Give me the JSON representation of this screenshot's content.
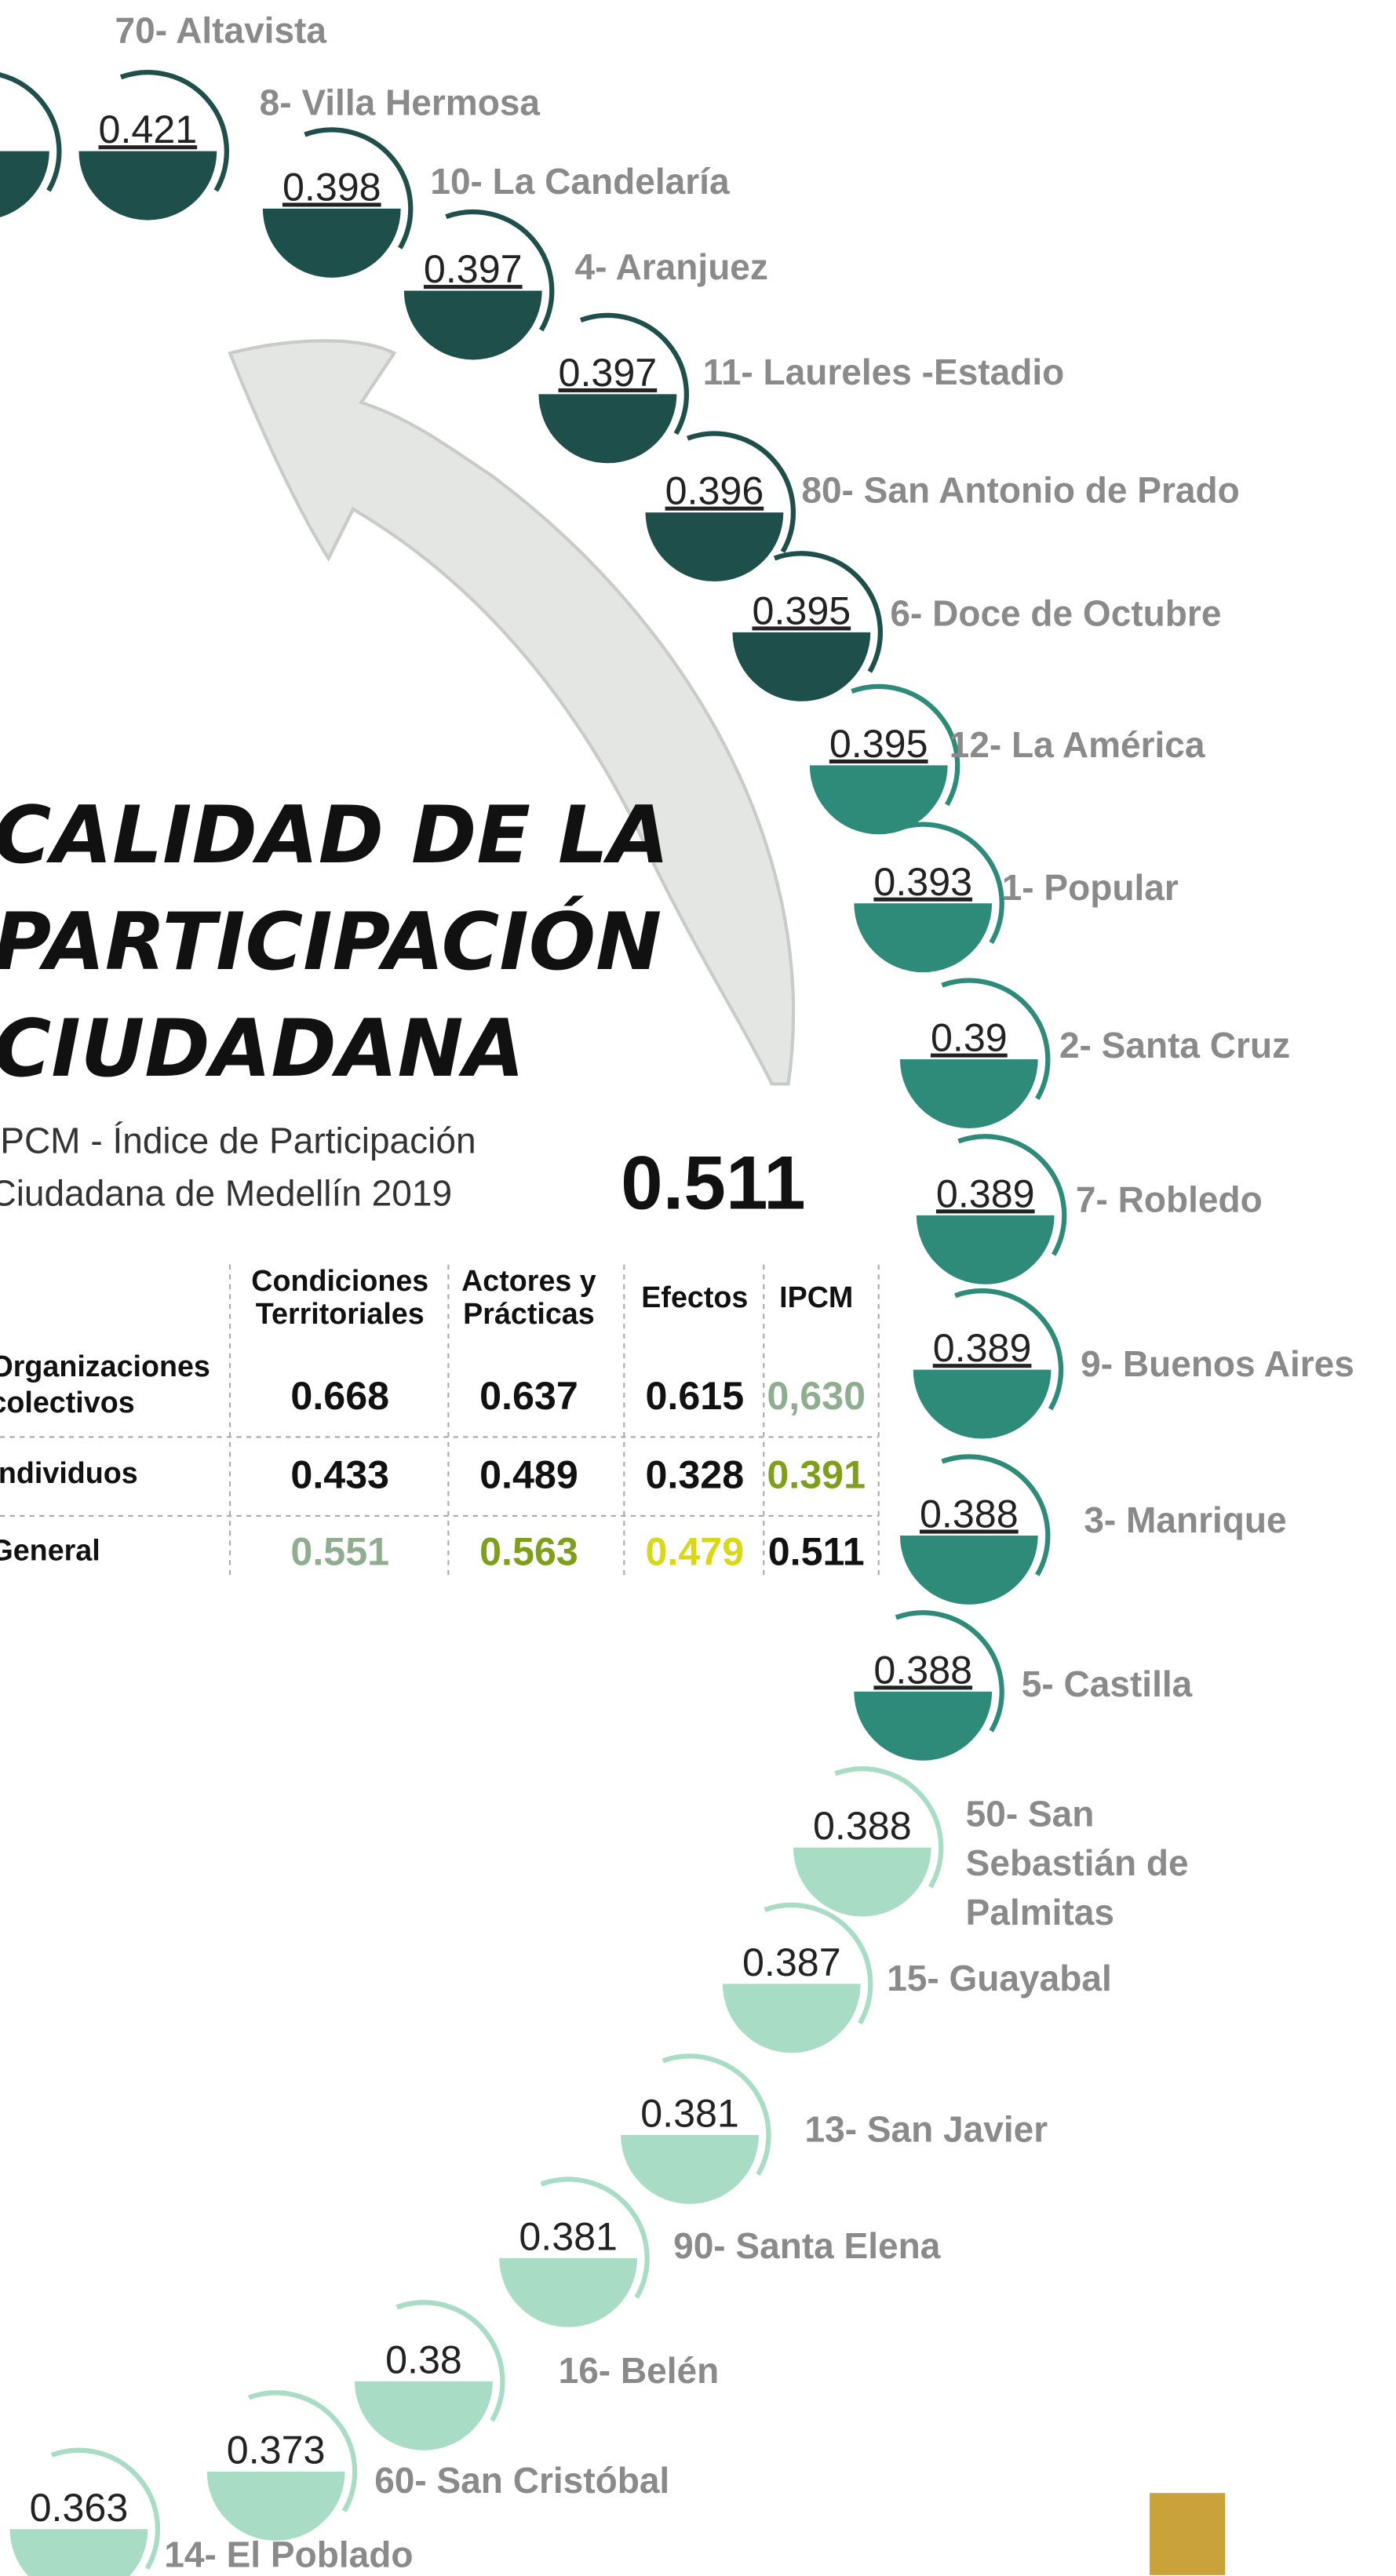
{
  "title": [
    "CALIDAD DE LA",
    "PARTICIPACIÓN",
    "CIUDADANA"
  ],
  "subtitle": [
    "IPCM - Índice de Participación",
    "Ciudadana de Medellín 2019"
  ],
  "headline_value": "0.511",
  "table": {
    "columns": [
      [
        "Condiciones",
        "Territoriales"
      ],
      [
        "Actores y",
        "Prácticas"
      ],
      [
        "Efectos"
      ],
      [
        "IPCM"
      ]
    ],
    "rows": [
      {
        "label": [
          "Organizaciones",
          "colectivos"
        ],
        "cells": [
          "0.668",
          "0.637",
          "0.615",
          "0,630"
        ],
        "colors": [
          "#111111",
          "#111111",
          "#111111",
          "#8fae8f"
        ]
      },
      {
        "label": [
          "Individuos"
        ],
        "cells": [
          "0.433",
          "0.489",
          "0.328",
          "0.391"
        ],
        "colors": [
          "#111111",
          "#111111",
          "#111111",
          "#7f9e1c"
        ]
      },
      {
        "label": [
          "General"
        ],
        "cells": [
          "0.551",
          "0.563",
          "0.479",
          "0.511"
        ],
        "colors": [
          "#8fae8f",
          "#7f9e1c",
          "#d8d816",
          "#111111"
        ]
      }
    ]
  },
  "items": [
    {
      "label": [
        "70- Altavista"
      ],
      "color": "#1f4f4a"
    },
    {
      "label": [
        "8- Villa Hermosa"
      ],
      "value": "0.421",
      "color": "#1f4f4a"
    },
    {
      "label": [
        "10- La Candelaría"
      ],
      "value": "0.398",
      "color": "#1f4f4a"
    },
    {
      "label": [
        "4- Aranjuez"
      ],
      "value": "0.397",
      "color": "#1f4f4a"
    },
    {
      "label": [
        "11- Laureles -Estadio"
      ],
      "value": "0.397",
      "color": "#1f4f4a"
    },
    {
      "label": [
        "80- San Antonio de Prado"
      ],
      "value": "0.396",
      "color": "#1f4f4a"
    },
    {
      "label": [
        "6- Doce de Octubre"
      ],
      "value": "0.395",
      "color": "#1f4f4a"
    },
    {
      "label": [
        "12- La América"
      ],
      "value": "0.395",
      "color": "#2e8b7a"
    },
    {
      "label": [
        "1- Popular"
      ],
      "value": "0.393",
      "color": "#2e8b7a"
    },
    {
      "label": [
        "2- Santa Cruz"
      ],
      "value": "0.39",
      "color": "#2e8b7a"
    },
    {
      "label": [
        "7- Robledo"
      ],
      "value": "0.389",
      "color": "#2e8b7a"
    },
    {
      "label": [
        "9- Buenos Aires"
      ],
      "value": "0.389",
      "color": "#2e8b7a"
    },
    {
      "label": [
        "3- Manrique"
      ],
      "value": "0.388",
      "color": "#2e8b7a"
    },
    {
      "label": [
        "5- Castilla"
      ],
      "value": "0.388",
      "color": "#2e8b7a"
    },
    {
      "label": [
        "50- San",
        "Sebastián de",
        "Palmitas"
      ],
      "value": "0.388",
      "color": "#a8dcc4"
    },
    {
      "label": [
        "15- Guayabal"
      ],
      "value": "0.387",
      "color": "#a8dcc4"
    },
    {
      "label": [
        "13- San Javier"
      ],
      "value": "0.381",
      "color": "#a8dcc4"
    },
    {
      "label": [
        "90- Santa Elena"
      ],
      "value": "0.381",
      "color": "#a8dcc4"
    },
    {
      "label": [
        "16- Belén"
      ],
      "value": "0.38",
      "color": "#a8dcc4"
    },
    {
      "label": [
        "60- San Cristóbal"
      ],
      "value": "0.373",
      "color": "#a8dcc4"
    },
    {
      "label": [
        "14- El Poblado"
      ],
      "value": "0.363",
      "color": "#a8dcc4"
    }
  ]
}
